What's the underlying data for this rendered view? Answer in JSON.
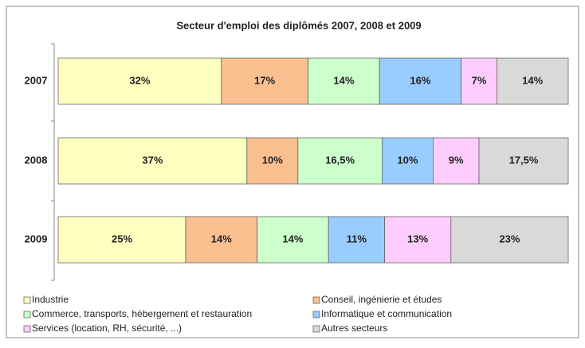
{
  "chart_data": {
    "type": "stacked_bar_horizontal",
    "title": "Secteur d'emploi des diplômés 2007, 2008 et 2009",
    "categories": [
      "2007",
      "2008",
      "2009"
    ],
    "series": [
      {
        "name": "Industrie",
        "color": "#ffffc0",
        "values": [
          32,
          37,
          25
        ],
        "value_labels": [
          "32%",
          "37%",
          "25%"
        ]
      },
      {
        "name": "Conseil, ingénierie et études",
        "color": "#fac090",
        "values": [
          17,
          10,
          14
        ],
        "value_labels": [
          "17%",
          "10%",
          "14%"
        ]
      },
      {
        "name": "Commerce, transports, hébergement et restauration",
        "color": "#ccffcc",
        "values": [
          14,
          16.5,
          14
        ],
        "value_labels": [
          "14%",
          "16,5%",
          "14%"
        ]
      },
      {
        "name": "Informatique et communication",
        "color": "#99ccff",
        "values": [
          16,
          10,
          11
        ],
        "value_labels": [
          "16%",
          "10%",
          "11%"
        ]
      },
      {
        "name": "Services (location, RH, sécurité, ...)",
        "color": "#ffccff",
        "values": [
          7,
          9,
          13
        ],
        "value_labels": [
          "7%",
          "9%",
          "13%"
        ]
      },
      {
        "name": "Autres secteurs",
        "color": "#d9d9d9",
        "values": [
          14,
          17.5,
          23
        ],
        "value_labels": [
          "14%",
          "17,5%",
          "23%"
        ]
      }
    ],
    "legend": "bottom"
  }
}
